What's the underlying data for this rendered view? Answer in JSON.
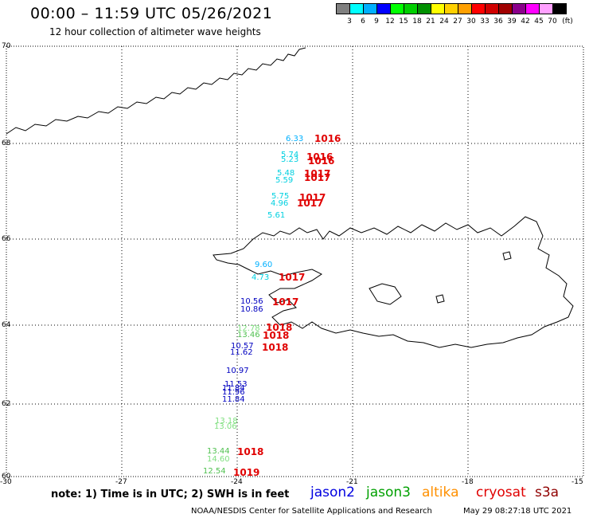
{
  "header": {
    "title": "00:00 – 11:59 UTC 05/26/2021",
    "subtitle": "12 hour collection of altimeter wave heights"
  },
  "color_scale": {
    "colors": [
      "#808080",
      "#00ffff",
      "#00b0ff",
      "#0000ff",
      "#00ff00",
      "#00d000",
      "#009000",
      "#ffff00",
      "#ffd000",
      "#ffa000",
      "#ff0000",
      "#d00000",
      "#a00000",
      "#8b008b",
      "#ff00ff",
      "#ffa0ff",
      "#000000"
    ],
    "labels": [
      "3",
      "6",
      "9",
      "12",
      "15",
      "18",
      "21",
      "24",
      "27",
      "30",
      "33",
      "36",
      "39",
      "42",
      "45",
      "70",
      "(ft)"
    ]
  },
  "axes": {
    "lat_labels": [
      "70",
      "68",
      "66",
      "64",
      "62",
      "60"
    ],
    "lon_labels": [
      "-30",
      "-27",
      "-24",
      "-21",
      "-18",
      "-15"
    ]
  },
  "observations": [
    {
      "text": "6.33",
      "color": "#00b0ff"
    },
    {
      "text": "5.74",
      "color": "#00d0e0"
    },
    {
      "text": "5.23",
      "color": "#00d0e0"
    },
    {
      "text": "5.48",
      "color": "#00d0e0"
    },
    {
      "text": "5.59",
      "color": "#00d0e0"
    },
    {
      "text": "5.75",
      "color": "#00d0e0"
    },
    {
      "text": "4.96",
      "color": "#00d0e0"
    },
    {
      "text": "5.61",
      "color": "#00d0e0"
    },
    {
      "text": "9.60",
      "color": "#00b0ff"
    },
    {
      "text": "4.73",
      "color": "#00d0e0"
    },
    {
      "text": "10.56",
      "color": "#0000c0"
    },
    {
      "text": "10.86",
      "color": "#0000c0"
    },
    {
      "text": "12.78",
      "color": "#80e080"
    },
    {
      "text": "13.46",
      "color": "#50c050"
    },
    {
      "text": "10.57",
      "color": "#0000c0"
    },
    {
      "text": "11.62",
      "color": "#0000c0"
    },
    {
      "text": "10.97",
      "color": "#0000c0"
    },
    {
      "text": "11.53",
      "color": "#0000c0"
    },
    {
      "text": "11.84",
      "color": "#0000c0"
    },
    {
      "text": "11.96",
      "color": "#0000c0"
    },
    {
      "text": "11.84",
      "color": "#0000c0"
    },
    {
      "text": "13.18",
      "color": "#80e080"
    },
    {
      "text": "13.06",
      "color": "#80e080"
    },
    {
      "text": "13.44",
      "color": "#50c050"
    },
    {
      "text": "14.60",
      "color": "#80e080"
    },
    {
      "text": "12.54",
      "color": "#50c050"
    }
  ],
  "pressure_labels": [
    "1016",
    "1016",
    "1016",
    "1017",
    "1017",
    "1017",
    "1017",
    "1017",
    "1017",
    "1018",
    "1018",
    "1018",
    "1018",
    "1019"
  ],
  "note": "note: 1) Time is in UTC; 2) SWH is in feet",
  "legend": [
    {
      "label": "jason2",
      "color": "#0000e0"
    },
    {
      "label": "jason3",
      "color": "#00a000"
    },
    {
      "label": "altika",
      "color": "#ff9000"
    },
    {
      "label": "cryosat",
      "color": "#e00000"
    },
    {
      "label": "s3a",
      "color": "#900000"
    }
  ],
  "footer": {
    "credit": "NOAA/NESDIS Center for Satellite Applications and Research",
    "timestamp": "May 29 08:27:18 UTC 2021"
  }
}
